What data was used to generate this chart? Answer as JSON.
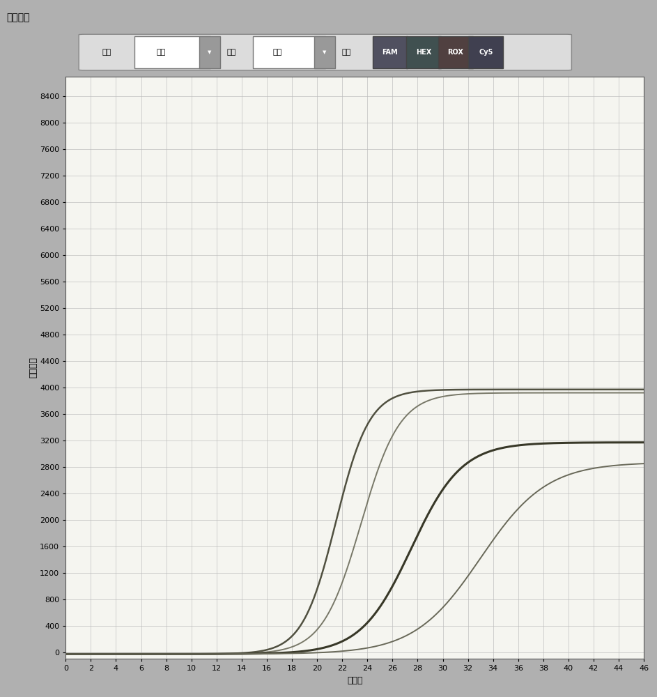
{
  "title": "扩增曲线",
  "xlabel": "循环数",
  "ylabel": "荧光强度",
  "xlim": [
    0,
    46
  ],
  "ylim": [
    -100,
    8700
  ],
  "xticks": [
    0,
    2,
    4,
    6,
    8,
    10,
    12,
    14,
    16,
    18,
    20,
    22,
    24,
    26,
    28,
    30,
    32,
    34,
    36,
    38,
    40,
    42,
    44,
    46
  ],
  "yticks": [
    0,
    400,
    800,
    1200,
    1600,
    2000,
    2400,
    2800,
    3200,
    3600,
    4000,
    4400,
    4800,
    5200,
    5600,
    6000,
    6400,
    6800,
    7200,
    7600,
    8000,
    8400
  ],
  "background_color": "#b0b0b0",
  "plot_bg_color": "#f5f5f0",
  "grid_color": "#bbbbbb",
  "curves": [
    {
      "color": "#505040",
      "linewidth": 1.8,
      "L": 4000,
      "k": 0.75,
      "x0": 21.5,
      "baseline": -30
    },
    {
      "color": "#787868",
      "linewidth": 1.4,
      "L": 3950,
      "k": 0.65,
      "x0": 23.5,
      "baseline": -30
    },
    {
      "color": "#383828",
      "linewidth": 2.2,
      "L": 3200,
      "k": 0.5,
      "x0": 27.5,
      "baseline": -30
    },
    {
      "color": "#686858",
      "linewidth": 1.4,
      "L": 2900,
      "k": 0.38,
      "x0": 33.0,
      "baseline": -30
    }
  ],
  "title_bar_color": "#a0a0a0",
  "toolbar_bar_color": "#c8c8c8",
  "title_fontsize": 10,
  "axis_label_fontsize": 9,
  "tick_fontsize": 8
}
